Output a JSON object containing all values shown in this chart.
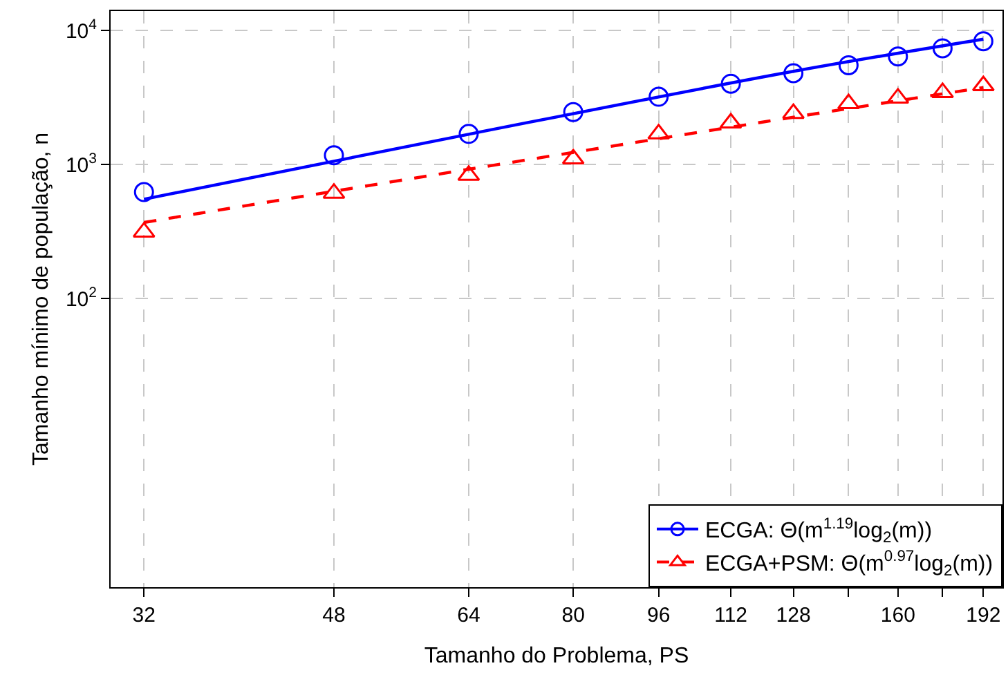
{
  "chart_data": {
    "type": "scatter",
    "xlabel": "Tamanho do Problema, PS",
    "ylabel": "Tamanho mínimo de população, n",
    "log": "xy",
    "grid": true,
    "legend": "bottom right",
    "xlim": [
      29.8,
      200
    ],
    "xticks": [
      32,
      48,
      64,
      80,
      96,
      112,
      128,
      {
        "value": 144,
        "label": null
      },
      160,
      {
        "value": 176,
        "label": null
      },
      192
    ],
    "ylim": [
      0.7,
      13950
    ],
    "yticks": [
      {
        "value": 100,
        "label": "10$^{2}$"
      },
      {
        "value": 1000,
        "label": "10$^{3}$"
      },
      {
        "value": 10000,
        "label": "10$^{4}$"
      }
    ],
    "series": [
      {
        "name": "ECGA: Θ(m$^{1.19}$log$_{2}$(m))",
        "marker": "circle",
        "color": "#0000ff",
        "x": [
          32,
          48,
          64,
          80,
          96,
          112,
          128,
          144,
          160,
          176,
          192
        ],
        "values": [
          622,
          1170,
          1690,
          2460,
          3200,
          4000,
          4800,
          5500,
          6400,
          7350,
          8300
        ]
      },
      {
        "type": "line",
        "line_style": "solid",
        "marker": "none",
        "color": "#0000ff",
        "x": [
          32,
          64,
          128,
          192
        ],
        "values": [
          550,
          1680,
          4950,
          8600
        ]
      },
      {
        "name": "ECGA+PSM: Θ(m$^{0.97}$log$_{2}$(m))",
        "marker": "triangle",
        "color": "#ff0000",
        "x": [
          32,
          48,
          64,
          80,
          96,
          112,
          128,
          144,
          160,
          176,
          192
        ],
        "values": [
          313,
          610,
          830,
          1100,
          1690,
          2040,
          2400,
          2840,
          3130,
          3440,
          3870
        ]
      },
      {
        "type": "line",
        "line_style": "dashed",
        "marker": "none",
        "color": "#ff0000",
        "x": [
          32,
          64,
          128,
          192
        ],
        "values": [
          369,
          920,
          2250,
          3750
        ]
      }
    ]
  }
}
